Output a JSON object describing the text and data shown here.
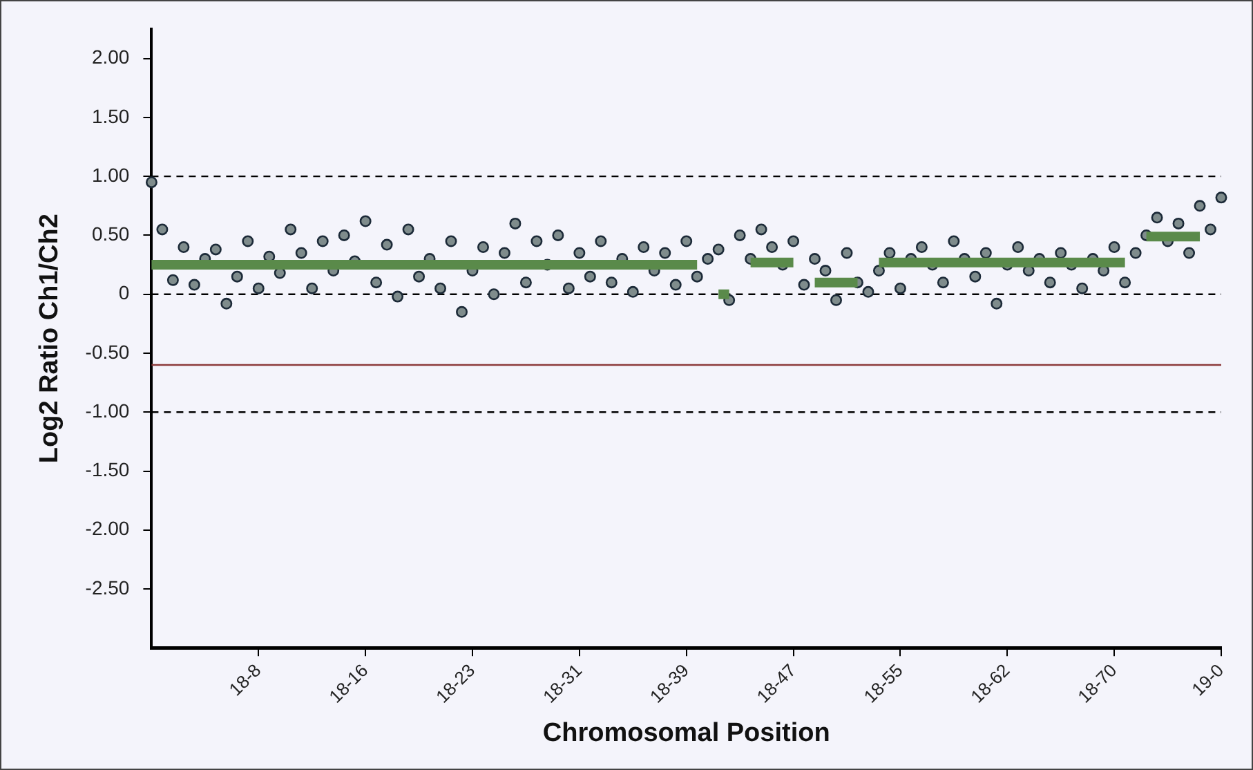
{
  "chart_data": {
    "type": "scatter",
    "xlabel": "Chromosomal Position",
    "ylabel": "Log2 Ratio Ch1/Ch2",
    "categories": [
      null,
      null,
      null,
      null,
      null,
      null,
      null,
      null,
      null,
      null,
      "18-8",
      null,
      null,
      null,
      null,
      null,
      null,
      null,
      null,
      null,
      "18-16",
      null,
      null,
      null,
      null,
      null,
      null,
      null,
      null,
      null,
      "18-23",
      null,
      null,
      null,
      null,
      null,
      null,
      null,
      null,
      null,
      "18-31",
      null,
      null,
      null,
      null,
      null,
      null,
      null,
      null,
      null,
      "18-39",
      null,
      null,
      null,
      null,
      null,
      null,
      null,
      null,
      null,
      "18-47",
      null,
      null,
      null,
      null,
      null,
      null,
      null,
      null,
      null,
      "18-55",
      null,
      null,
      null,
      null,
      null,
      null,
      null,
      null,
      null,
      "18-62",
      null,
      null,
      null,
      null,
      null,
      null,
      null,
      null,
      null,
      "18-70",
      null,
      null,
      null,
      null,
      null,
      null,
      null,
      null,
      null,
      "19-0"
    ],
    "ylim": [
      -3,
      2.25
    ],
    "yticks": [
      {
        "value": 2,
        "label": "2.00"
      },
      {
        "value": 1.5,
        "label": "1.50"
      },
      {
        "value": 1,
        "label": "1.00"
      },
      {
        "value": 0.5,
        "label": "0.50"
      },
      0,
      {
        "value": -0.5,
        "label": "-0.50"
      },
      {
        "value": -1,
        "label": "-1.00"
      },
      {
        "value": -1.5,
        "label": "-1.50"
      },
      {
        "value": -2,
        "label": "-2.00"
      },
      {
        "value": -2.5,
        "label": "-2.50"
      }
    ],
    "grid": false,
    "legend": false,
    "ref_lines": [
      {
        "axis": "y",
        "value": 1,
        "color": "#000000",
        "line_style": "dashed"
      },
      {
        "axis": "y",
        "value": 0,
        "color": "#000000",
        "line_style": "dashed"
      },
      {
        "axis": "y",
        "value": -1,
        "color": "#000000",
        "line_style": "dashed"
      },
      {
        "axis": "y",
        "value": -0.6,
        "color": "#8c3a3a",
        "line_style": "solid"
      }
    ],
    "series": [
      {
        "color": "#7f8c8c",
        "marker": "circle",
        "values": [
          0.95,
          0.55,
          0.12,
          0.4,
          0.08,
          0.3,
          0.38,
          -0.08,
          0.15,
          0.45,
          0.05,
          0.32,
          0.18,
          0.55,
          0.35,
          0.05,
          0.45,
          0.2,
          0.5,
          0.28,
          0.62,
          0.1,
          0.42,
          -0.02,
          0.55,
          0.15,
          0.3,
          0.05,
          0.45,
          -0.15,
          0.2,
          0.4,
          0.0,
          0.35,
          0.6,
          0.1,
          0.45,
          0.25,
          0.5,
          0.05,
          0.35,
          0.15,
          0.45,
          0.1,
          0.3,
          0.02,
          0.4,
          0.2,
          0.35,
          0.08,
          0.45,
          0.15,
          0.3,
          0.38,
          -0.05,
          0.5,
          0.3,
          0.55,
          0.4,
          0.25,
          0.45,
          0.08,
          0.3,
          0.2,
          -0.05,
          0.35,
          0.1,
          0.02,
          0.2,
          0.35,
          0.05,
          0.3,
          0.4,
          0.25,
          0.1,
          0.45,
          0.3,
          0.15,
          0.35,
          -0.08,
          0.25,
          0.4,
          0.2,
          0.3,
          0.1,
          0.35,
          0.25,
          0.05,
          0.3,
          0.2,
          0.4,
          0.1,
          0.35,
          0.5,
          0.65,
          0.45,
          0.6,
          0.35,
          0.75,
          0.55,
          0.82
        ]
      },
      {
        "type": "line",
        "color": "#5a8a4a",
        "marker": "none",
        "values": [
          0.25,
          0.25,
          0.25,
          0.25,
          0.25,
          0.25,
          0.25,
          0.25,
          0.25,
          0.25,
          0.25,
          0.25,
          0.25,
          0.25,
          0.25,
          0.25,
          0.25,
          0.25,
          0.25,
          0.25,
          0.25,
          0.25,
          0.25,
          0.25,
          0.25,
          0.25,
          0.25,
          0.25,
          0.25,
          0.25,
          0.25,
          0.25,
          0.25,
          0.25,
          0.25,
          0.25,
          0.25,
          0.25,
          0.25,
          0.25,
          0.25,
          0.25,
          0.25,
          0.25,
          0.25,
          0.25,
          0.25,
          0.25,
          0.25,
          0.25,
          0.25,
          0.25,
          null,
          0.0,
          0.0,
          null,
          0.27,
          0.27,
          0.27,
          0.27,
          0.27,
          null,
          0.1,
          0.1,
          0.1,
          0.1,
          0.1,
          null,
          0.27,
          0.27,
          0.27,
          0.27,
          0.27,
          0.27,
          0.27,
          0.27,
          0.27,
          0.27,
          0.27,
          0.27,
          0.27,
          0.27,
          0.27,
          0.27,
          0.27,
          0.27,
          0.27,
          0.27,
          0.27,
          0.27,
          0.27,
          0.27,
          null,
          0.49,
          0.49,
          0.49,
          0.49,
          0.49,
          0.49,
          null,
          null
        ]
      }
    ]
  }
}
